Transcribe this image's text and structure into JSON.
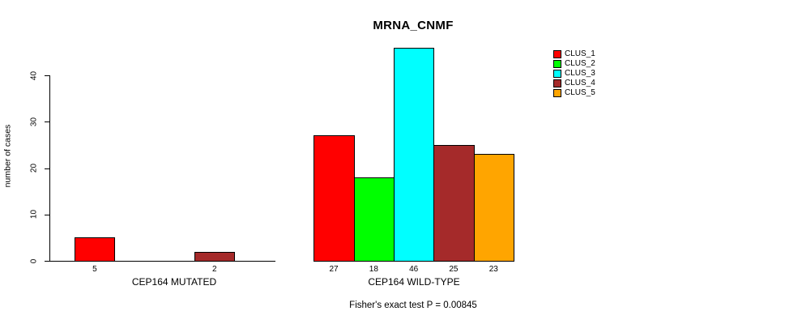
{
  "chart_data": {
    "type": "bar",
    "title": "MRNA_CNMF",
    "ylabel": "number of cases",
    "annotation": "Fisher's exact test P = 0.00845",
    "yticks": [
      0,
      10,
      20,
      30,
      40
    ],
    "ylim": [
      0,
      46
    ],
    "grid": false,
    "clusters": [
      {
        "label": "CLUS_1",
        "color": "#FF0000"
      },
      {
        "label": "CLUS_2",
        "color": "#00FF00"
      },
      {
        "label": "CLUS_3",
        "color": "#00FFFF"
      },
      {
        "label": "CLUS_4",
        "color": "#A52A2A"
      },
      {
        "label": "CLUS_5",
        "color": "#FFA500"
      }
    ],
    "groups": [
      {
        "label": "CEP164 MUTATED",
        "values": [
          5,
          0,
          0,
          2,
          0
        ],
        "bar_labels": [
          "5",
          "",
          "",
          "2",
          ""
        ]
      },
      {
        "label": "CEP164 WILD-TYPE",
        "values": [
          27,
          18,
          46,
          25,
          23
        ],
        "bar_labels": [
          "27",
          "18",
          "46",
          "25",
          "23"
        ]
      }
    ],
    "legend": {
      "position": "top-right"
    },
    "axis_color": "#000000",
    "background_color": "#FFFFFF"
  }
}
